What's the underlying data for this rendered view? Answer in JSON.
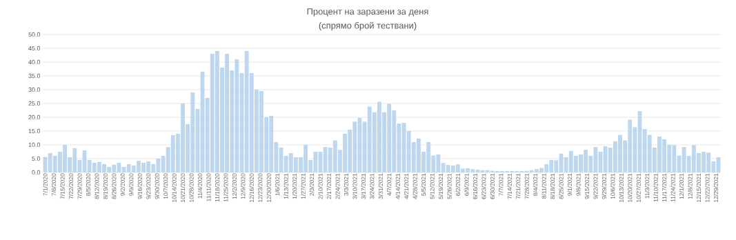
{
  "chart_data": {
    "type": "bar",
    "title": "Процент на заразени за деня",
    "subtitle": "(спрямо брой тествани)",
    "x": [
      "2020-07-01",
      "2020-07-05",
      "2020-07-09",
      "2020-07-13",
      "2020-07-17",
      "2020-07-21",
      "2020-07-25",
      "2020-07-29",
      "2020-08-02",
      "2020-08-06",
      "2020-08-10",
      "2020-08-14",
      "2020-08-18",
      "2020-08-22",
      "2020-08-26",
      "2020-08-30",
      "2020-09-03",
      "2020-09-07",
      "2020-09-11",
      "2020-09-15",
      "2020-09-19",
      "2020-09-23",
      "2020-09-27",
      "2020-10-01",
      "2020-10-05",
      "2020-10-09",
      "2020-10-13",
      "2020-10-17",
      "2020-10-21",
      "2020-10-25",
      "2020-10-29",
      "2020-11-02",
      "2020-11-06",
      "2020-11-10",
      "2020-11-14",
      "2020-11-18",
      "2020-11-22",
      "2020-11-26",
      "2020-11-30",
      "2020-12-04",
      "2020-12-08",
      "2020-12-12",
      "2020-12-16",
      "2020-12-20",
      "2020-12-24",
      "2020-12-28",
      "2021-01-01",
      "2021-01-05",
      "2021-01-09",
      "2021-01-13",
      "2021-01-17",
      "2021-01-21",
      "2021-01-25",
      "2021-01-29",
      "2021-02-02",
      "2021-02-06",
      "2021-02-10",
      "2021-02-14",
      "2021-02-18",
      "2021-02-22",
      "2021-02-26",
      "2021-03-02",
      "2021-03-06",
      "2021-03-10",
      "2021-03-14",
      "2021-03-18",
      "2021-03-22",
      "2021-03-26",
      "2021-03-30",
      "2021-04-03",
      "2021-04-07",
      "2021-04-11",
      "2021-04-15",
      "2021-04-19",
      "2021-04-23",
      "2021-04-27",
      "2021-05-01",
      "2021-05-05",
      "2021-05-09",
      "2021-05-13",
      "2021-05-17",
      "2021-05-21",
      "2021-05-25",
      "2021-05-29",
      "2021-06-02",
      "2021-06-06",
      "2021-06-10",
      "2021-06-14",
      "2021-06-18",
      "2021-06-22",
      "2021-06-26",
      "2021-06-30",
      "2021-07-04",
      "2021-07-08",
      "2021-07-12",
      "2021-07-16",
      "2021-07-20",
      "2021-07-24",
      "2021-07-28",
      "2021-08-01",
      "2021-08-05",
      "2021-08-09",
      "2021-08-13",
      "2021-08-17",
      "2021-08-21",
      "2021-08-25",
      "2021-08-29",
      "2021-09-02",
      "2021-09-06",
      "2021-09-10",
      "2021-09-14",
      "2021-09-18",
      "2021-09-22",
      "2021-09-26",
      "2021-09-30",
      "2021-10-04",
      "2021-10-08",
      "2021-10-12",
      "2021-10-16",
      "2021-10-20",
      "2021-10-24",
      "2021-10-28",
      "2021-11-01",
      "2021-11-05",
      "2021-11-09",
      "2021-11-13",
      "2021-11-17",
      "2021-11-21",
      "2021-11-25",
      "2021-11-29",
      "2021-12-03",
      "2021-12-07",
      "2021-12-11",
      "2021-12-15",
      "2021-12-19",
      "2021-12-23",
      "2021-12-27",
      "2021-12-31"
    ],
    "values": [
      5.6,
      7.0,
      6.0,
      7.5,
      10.0,
      5.5,
      8.8,
      4.5,
      8.0,
      4.5,
      3.5,
      3.8,
      3.0,
      2.0,
      2.8,
      3.5,
      2.0,
      3.0,
      2.5,
      4.2,
      3.5,
      4.0,
      3.0,
      5.0,
      6.0,
      9.2,
      13.5,
      14.0,
      25.0,
      17.5,
      29.0,
      23.0,
      36.5,
      27.0,
      43.0,
      44.0,
      38.0,
      43.0,
      37.0,
      41.0,
      36.0,
      44.0,
      36.0,
      30.0,
      29.5,
      20.0,
      20.5,
      11.0,
      9.0,
      6.0,
      7.0,
      5.5,
      5.5,
      10.0,
      4.5,
      7.5,
      7.5,
      9.2,
      9.0,
      11.6,
      8.2,
      14.0,
      15.5,
      18.4,
      19.8,
      18.4,
      23.9,
      21.8,
      25.6,
      21.8,
      24.9,
      22.5,
      17.7,
      18.0,
      15.0,
      11.0,
      12.3,
      7.5,
      11.0,
      6.1,
      6.5,
      3.4,
      2.7,
      2.5,
      2.9,
      1.4,
      1.5,
      1.2,
      1.0,
      0.8,
      0.8,
      0.6,
      0.5,
      0.5,
      0.5,
      0.5,
      0.5,
      0.5,
      0.6,
      0.8,
      1.2,
      1.6,
      3.0,
      4.5,
      4.4,
      6.8,
      5.5,
      7.8,
      6.0,
      6.5,
      8.2,
      6.0,
      9.2,
      7.5,
      9.5,
      9.0,
      11.3,
      13.6,
      11.6,
      19.1,
      16.4,
      22.2,
      15.7,
      13.6,
      9.0,
      13.0,
      12.0,
      10.0,
      9.9,
      6.1,
      9.2,
      6.0,
      9.9,
      7.0,
      7.5,
      7.2,
      4.0,
      5.5
    ],
    "color": "#bdd7ee",
    "xlim": [
      "2020-06-29",
      "2022-01-02"
    ],
    "xticks": [
      {
        "value": "2020-07-01",
        "label": "7/1/2020"
      },
      {
        "value": "2020-07-08",
        "label": "7/8/2020"
      },
      {
        "value": "2020-07-15",
        "label": "7/15/2020"
      },
      {
        "value": "2020-07-22",
        "label": "7/22/2020"
      },
      {
        "value": "2020-07-29",
        "label": "7/29/2020"
      },
      {
        "value": "2020-08-05",
        "label": "8/5/2020"
      },
      {
        "value": "2020-08-12",
        "label": "8/12/2020"
      },
      {
        "value": "2020-08-19",
        "label": "8/19/2020"
      },
      {
        "value": "2020-08-26",
        "label": "8/26/2020"
      },
      {
        "value": "2020-09-02",
        "label": "9/2/2020"
      },
      {
        "value": "2020-09-09",
        "label": "9/9/2020"
      },
      {
        "value": "2020-09-16",
        "label": "9/16/2020"
      },
      {
        "value": "2020-09-23",
        "label": "9/23/2020"
      },
      {
        "value": "2020-09-30",
        "label": "9/30/2020"
      },
      {
        "value": "2020-10-07",
        "label": "10/7/2020"
      },
      {
        "value": "2020-10-14",
        "label": "10/14/2020"
      },
      {
        "value": "2020-10-21",
        "label": "10/21/2020"
      },
      {
        "value": "2020-10-28",
        "label": "10/28/2020"
      },
      {
        "value": "2020-11-04",
        "label": "11/4/2020"
      },
      {
        "value": "2020-11-11",
        "label": "11/11/2020"
      },
      {
        "value": "2020-11-18",
        "label": "11/18/2020"
      },
      {
        "value": "2020-11-25",
        "label": "11/25/2020"
      },
      {
        "value": "2020-12-02",
        "label": "12/2/2020"
      },
      {
        "value": "2020-12-09",
        "label": "12/9/2020"
      },
      {
        "value": "2020-12-16",
        "label": "12/16/2020"
      },
      {
        "value": "2020-12-23",
        "label": "12/23/2020"
      },
      {
        "value": "2020-12-30",
        "label": "12/30/2020"
      },
      {
        "value": "2021-01-06",
        "label": "1/6/2021"
      },
      {
        "value": "2021-01-13",
        "label": "1/13/2021"
      },
      {
        "value": "2021-01-20",
        "label": "1/20/2021"
      },
      {
        "value": "2021-01-27",
        "label": "1/27/2021"
      },
      {
        "value": "2021-02-03",
        "label": "2/3/2021"
      },
      {
        "value": "2021-02-10",
        "label": "2/10/2021"
      },
      {
        "value": "2021-02-17",
        "label": "2/17/2021"
      },
      {
        "value": "2021-02-24",
        "label": "2/24/2021"
      },
      {
        "value": "2021-03-03",
        "label": "3/3/2021"
      },
      {
        "value": "2021-03-10",
        "label": "3/10/2021"
      },
      {
        "value": "2021-03-17",
        "label": "3/17/2021"
      },
      {
        "value": "2021-03-24",
        "label": "3/24/2021"
      },
      {
        "value": "2021-03-31",
        "label": "3/31/2021"
      },
      {
        "value": "2021-04-07",
        "label": "4/7/2021"
      },
      {
        "value": "2021-04-14",
        "label": "4/14/2021"
      },
      {
        "value": "2021-04-21",
        "label": "4/21/2021"
      },
      {
        "value": "2021-04-28",
        "label": "4/28/2021"
      },
      {
        "value": "2021-05-05",
        "label": "5/5/2021"
      },
      {
        "value": "2021-05-12",
        "label": "5/12/2021"
      },
      {
        "value": "2021-05-19",
        "label": "5/19/2021"
      },
      {
        "value": "2021-05-26",
        "label": "5/26/2021"
      },
      {
        "value": "2021-06-02",
        "label": "6/2/2021"
      },
      {
        "value": "2021-06-09",
        "label": "6/9/2021"
      },
      {
        "value": "2021-06-16",
        "label": "6/16/2021"
      },
      {
        "value": "2021-06-23",
        "label": "6/23/2021"
      },
      {
        "value": "2021-06-30",
        "label": "6/30/2021"
      },
      {
        "value": "2021-07-07",
        "label": "7/7/2021"
      },
      {
        "value": "2021-07-14",
        "label": "7/14/2021"
      },
      {
        "value": "2021-07-21",
        "label": "7/21/2021"
      },
      {
        "value": "2021-07-28",
        "label": "7/28/2021"
      },
      {
        "value": "2021-08-04",
        "label": "8/4/2021"
      },
      {
        "value": "2021-08-11",
        "label": "8/11/2021"
      },
      {
        "value": "2021-08-18",
        "label": "8/18/2021"
      },
      {
        "value": "2021-08-25",
        "label": "8/25/2021"
      },
      {
        "value": "2021-09-01",
        "label": "9/1/2021"
      },
      {
        "value": "2021-09-08",
        "label": "9/8/2021"
      },
      {
        "value": "2021-09-15",
        "label": "9/15/2021"
      },
      {
        "value": "2021-09-22",
        "label": "9/22/2021"
      },
      {
        "value": "2021-09-29",
        "label": "9/29/2021"
      },
      {
        "value": "2021-10-06",
        "label": "10/6/2021"
      },
      {
        "value": "2021-10-13",
        "label": "10/13/2021"
      },
      {
        "value": "2021-10-20",
        "label": "10/20/2021"
      },
      {
        "value": "2021-10-27",
        "label": "10/27/2021"
      },
      {
        "value": "2021-11-03",
        "label": "11/3/2021"
      },
      {
        "value": "2021-11-10",
        "label": "11/10/2021"
      },
      {
        "value": "2021-11-17",
        "label": "11/17/2021"
      },
      {
        "value": "2021-11-24",
        "label": "11/24/2021"
      },
      {
        "value": "2021-12-01",
        "label": "12/1/2021"
      },
      {
        "value": "2021-12-08",
        "label": "12/8/2021"
      },
      {
        "value": "2021-12-15",
        "label": "12/15/2021"
      },
      {
        "value": "2021-12-22",
        "label": "12/22/2021"
      },
      {
        "value": "2021-12-29",
        "label": "12/29/2021"
      }
    ],
    "ylim": [
      0,
      50
    ],
    "yticks": [
      {
        "value": 0,
        "label": "0.0"
      },
      {
        "value": 5,
        "label": "5.0"
      },
      {
        "value": 10,
        "label": "10.0"
      },
      {
        "value": 15,
        "label": "15.0"
      },
      {
        "value": 20,
        "label": "20.0"
      },
      {
        "value": 25,
        "label": "25.0"
      },
      {
        "value": 30,
        "label": "30.0"
      },
      {
        "value": 35,
        "label": "35.0"
      },
      {
        "value": 40,
        "label": "40.0"
      },
      {
        "value": 45,
        "label": "45.0"
      },
      {
        "value": 50,
        "label": "50.0"
      }
    ],
    "grid": "y"
  }
}
